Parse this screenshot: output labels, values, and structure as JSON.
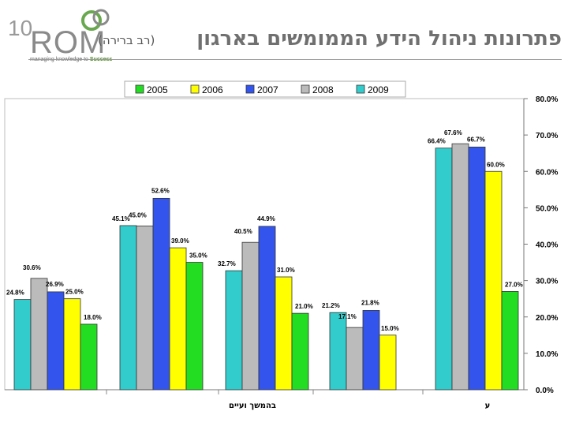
{
  "header": {
    "logo_ten": "10",
    "logo_name": "ROM",
    "logo_tagline_a": "managing knowledge to ",
    "logo_tagline_b": "Success",
    "title": "פתרונות ניהול הידע הממומשים בארגון",
    "subtitle": "(רב ברירה)"
  },
  "colors": {
    "2005": "#22dd22",
    "2006": "#ffff00",
    "2007": "#3355ee",
    "2008": "#bbbbbb",
    "2009": "#33cccc"
  },
  "chart_data": {
    "type": "bar",
    "title": "",
    "xlabel": "",
    "ylabel": "",
    "ylim": [
      0,
      80
    ],
    "y_ticks": [
      "0.0%",
      "10.0%",
      "20.0%",
      "30.0%",
      "40.0%",
      "50.0%",
      "60.0%",
      "70.0%",
      "80.0%"
    ],
    "legend": [
      "2005",
      "2006",
      "2007",
      "2008",
      "2009"
    ],
    "categories": [
      "",
      "",
      "בהמשך ועיים",
      "",
      "ע"
    ],
    "series": [
      {
        "name": "2009",
        "values": [
          24.8,
          45.1,
          32.7,
          21.2,
          66.4
        ],
        "labels": [
          "24.8%",
          "45.1%",
          "32.7%",
          "21.2%",
          "66.4%"
        ]
      },
      {
        "name": "2008",
        "values": [
          30.6,
          45.0,
          40.5,
          17.1,
          67.6
        ],
        "labels": [
          "30.6%",
          "45.0%",
          "40.5%",
          "17.1%",
          "67.6%"
        ]
      },
      {
        "name": "2007",
        "values": [
          26.9,
          52.6,
          44.9,
          21.8,
          66.7
        ],
        "labels": [
          "26.9%",
          "52.6%",
          "44.9%",
          "21.8%",
          "66.7%"
        ]
      },
      {
        "name": "2006",
        "values": [
          25.0,
          39.0,
          31.0,
          15.0,
          60.0
        ],
        "labels": [
          "25.0%",
          "39.0%",
          "31.0%",
          "15.0%",
          "60.0%"
        ]
      },
      {
        "name": "2005",
        "values": [
          18.0,
          35.0,
          21.0,
          null,
          27.0
        ],
        "labels": [
          "18.0%",
          "35.0%",
          "21.0%",
          "",
          "27.0%"
        ]
      }
    ]
  }
}
